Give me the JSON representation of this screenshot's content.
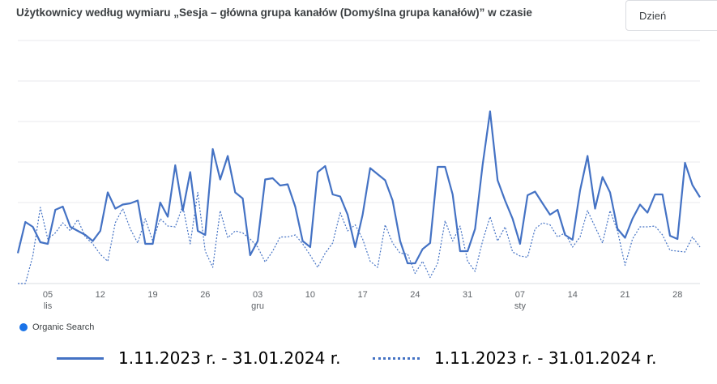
{
  "title": "Użytkownicy według wymiaru „Sesja – główna grupa kanałów (Domyślna grupa kanałów)” w czasie",
  "period_select": {
    "value": "Dzień"
  },
  "legend": {
    "series_label": "Organic Search"
  },
  "comparison_legend": {
    "current_label": "1.11.2023 r. - 31.01.2024  r.",
    "previous_label": "1.11.2023 r. - 31.01.2024 r."
  },
  "colors": {
    "accent": "#4472c4",
    "gridline": "#e8eaed",
    "legend_dot": "#1a73e8"
  },
  "chart_data": {
    "type": "line",
    "x_tick_labels": [
      {
        "day": 5,
        "label": "05",
        "sublabel": "lis"
      },
      {
        "day": 12,
        "label": "12"
      },
      {
        "day": 19,
        "label": "19"
      },
      {
        "day": 26,
        "label": "26"
      },
      {
        "day": 33,
        "label": "03",
        "sublabel": "gru"
      },
      {
        "day": 40,
        "label": "10"
      },
      {
        "day": 47,
        "label": "17"
      },
      {
        "day": 54,
        "label": "24"
      },
      {
        "day": 61,
        "label": "31"
      },
      {
        "day": 68,
        "label": "07",
        "sublabel": "sty"
      },
      {
        "day": 75,
        "label": "14"
      },
      {
        "day": 82,
        "label": "21"
      },
      {
        "day": 89,
        "label": "28"
      }
    ],
    "ylim": [
      0,
      6
    ],
    "grid": true,
    "series": [
      {
        "style": "solid",
        "values": [
          0.75,
          1.52,
          1.4,
          1.02,
          0.98,
          1.82,
          1.9,
          1.4,
          1.3,
          1.2,
          1.05,
          1.3,
          2.25,
          1.85,
          1.95,
          1.98,
          2.05,
          0.98,
          0.98,
          2.0,
          1.65,
          2.92,
          1.8,
          2.75,
          1.3,
          1.2,
          3.32,
          2.57,
          3.15,
          2.25,
          2.1,
          0.7,
          1.05,
          2.57,
          2.6,
          2.42,
          2.45,
          1.9,
          1.05,
          0.9,
          2.75,
          2.9,
          2.2,
          2.15,
          1.7,
          0.9,
          1.7,
          2.85,
          2.7,
          2.55,
          2.05,
          1.05,
          0.5,
          0.5,
          0.85,
          1.0,
          2.88,
          2.88,
          2.2,
          0.8,
          0.8,
          1.35,
          2.93,
          4.25,
          2.55,
          2.05,
          1.6,
          0.98,
          2.18,
          2.27,
          1.98,
          1.7,
          1.82,
          1.2,
          1.08,
          2.3,
          3.15,
          1.85,
          2.63,
          2.25,
          1.35,
          1.13,
          1.6,
          1.95,
          1.75,
          2.2,
          2.2,
          1.18,
          1.1,
          2.98,
          2.43,
          2.13
        ]
      },
      {
        "style": "dotted",
        "values": [
          0,
          0,
          0.68,
          1.88,
          1.1,
          1.25,
          1.5,
          1.3,
          1.58,
          1.15,
          0.98,
          0.72,
          0.55,
          1.5,
          1.85,
          1.35,
          1.0,
          1.6,
          1.05,
          1.6,
          1.42,
          1.4,
          1.92,
          0.98,
          2.25,
          0.8,
          0.4,
          1.8,
          1.13,
          1.3,
          1.25,
          1.1,
          0.9,
          0.53,
          0.8,
          1.15,
          1.15,
          1.2,
          0.98,
          0.7,
          0.4,
          0.75,
          1.0,
          1.75,
          1.3,
          1.45,
          1.1,
          0.55,
          0.4,
          1.45,
          1.0,
          0.75,
          0.73,
          0.25,
          0.55,
          0.15,
          0.5,
          1.55,
          1.05,
          1.42,
          0.55,
          0.3,
          1.05,
          1.65,
          1.05,
          1.4,
          0.78,
          0.68,
          0.65,
          1.35,
          1.5,
          1.45,
          1.15,
          1.25,
          0.9,
          1.15,
          1.8,
          1.4,
          1.0,
          1.8,
          1.3,
          0.45,
          1.1,
          1.4,
          1.4,
          1.42,
          1.2,
          0.82,
          0.8,
          0.78,
          1.15,
          0.9
        ]
      }
    ]
  }
}
